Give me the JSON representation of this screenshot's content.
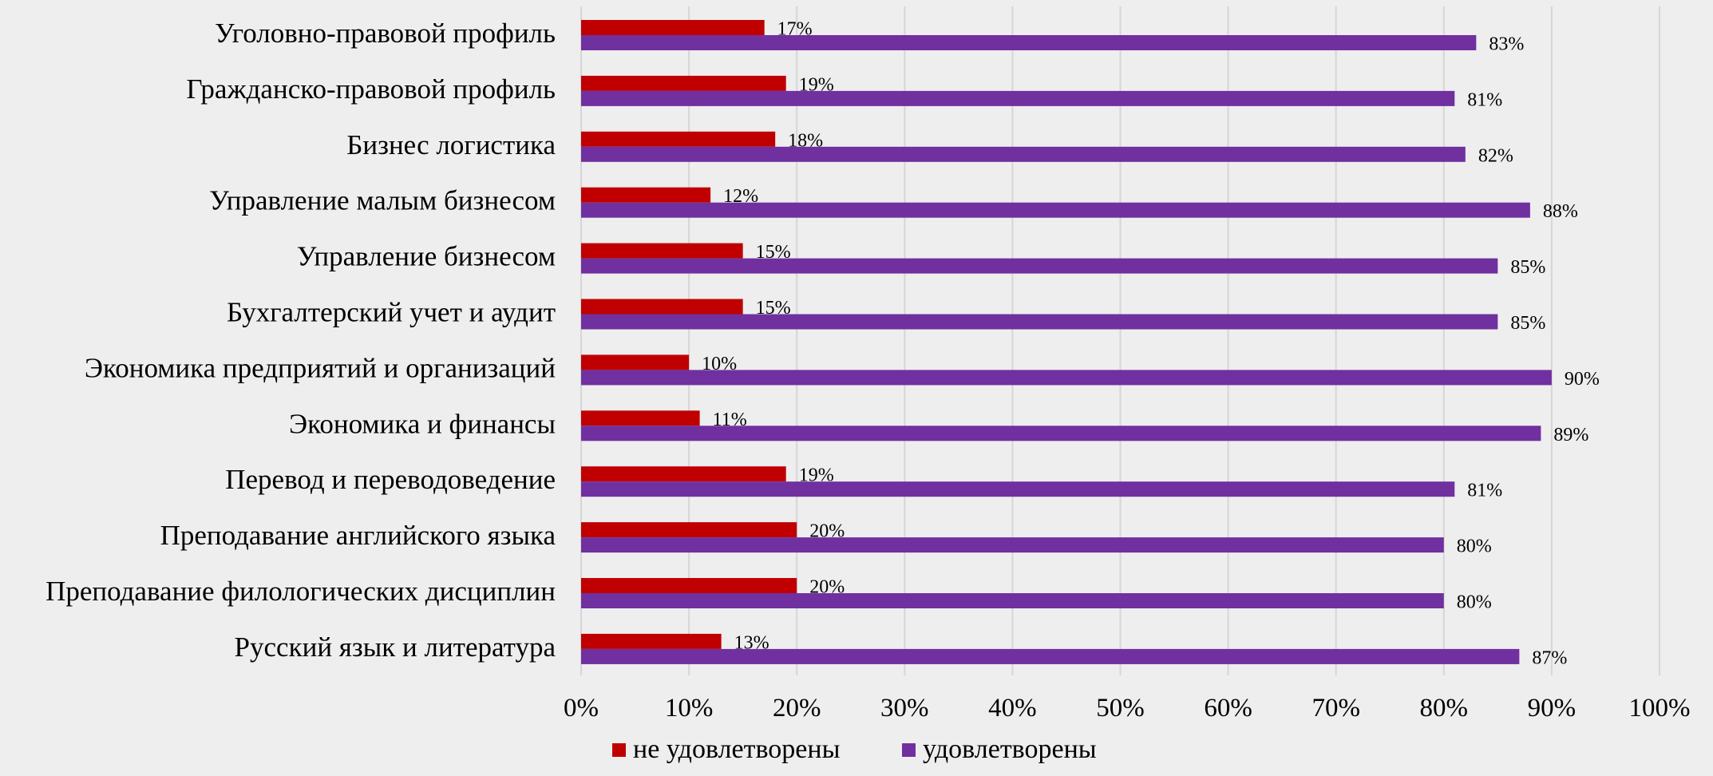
{
  "chart_data": {
    "type": "bar",
    "orientation": "horizontal",
    "categories": [
      "Уголовно-правовой профиль",
      "Гражданско-правовой профиль",
      "Бизнес логистика",
      "Управление малым бизнесом",
      "Управление бизнесом",
      "Бухгалтерский учет и аудит",
      "Экономика предприятий и организаций",
      "Экономика и финансы",
      "Перевод и переводоведение",
      "Преподавание английского языка",
      "Преподавание филологических дисциплин",
      "Русский язык и литература"
    ],
    "series": [
      {
        "name": "не удовлетворены",
        "color": "#c00000",
        "values": [
          17,
          19,
          18,
          12,
          15,
          15,
          10,
          11,
          19,
          20,
          20,
          13
        ],
        "labels": [
          "17%",
          "19%",
          "18%",
          "12%",
          "15%",
          "15%",
          "10%",
          "11%",
          "19%",
          "20%",
          "20%",
          "13%"
        ]
      },
      {
        "name": "удовлетворены",
        "color": "#7030a0",
        "values": [
          83,
          81,
          82,
          88,
          85,
          85,
          90,
          89,
          81,
          80,
          80,
          87
        ],
        "labels": [
          "83%",
          "81%",
          "82%",
          "88%",
          "85%",
          "85%",
          "90%",
          "89%",
          "81%",
          "80%",
          "80%",
          "87%"
        ]
      }
    ],
    "xlim": [
      0,
      100
    ],
    "xticks": [
      "0%",
      "10%",
      "20%",
      "30%",
      "40%",
      "50%",
      "60%",
      "70%",
      "80%",
      "90%",
      "100%"
    ],
    "grid": true,
    "legend": "bottom"
  }
}
